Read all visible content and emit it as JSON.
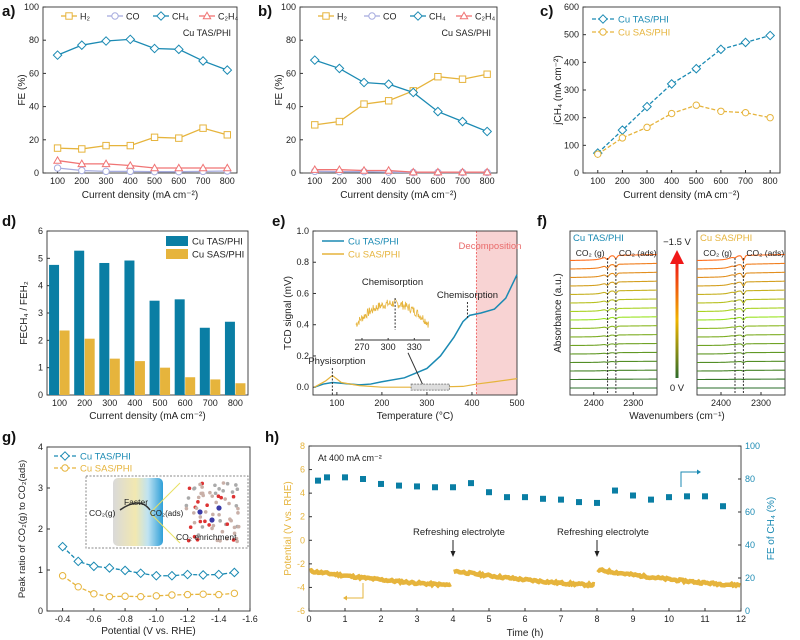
{
  "colors": {
    "blue": "#1b8ab3",
    "bar_blue": "#0a7ea4",
    "yellow": "#e6b43c",
    "lavender": "#a7acdf",
    "red": "#f07474",
    "decomp": "#f8d3d3",
    "decomp_line": "#f06d6d"
  },
  "chart_data": [
    {
      "panel": "a)",
      "type": "line",
      "x": [
        100,
        200,
        300,
        400,
        500,
        600,
        700,
        800
      ],
      "xtick_labels": [
        "100",
        "200",
        "300",
        "400",
        "500",
        "600",
        "700",
        "800"
      ],
      "ytick_labels": [
        "0",
        "20",
        "40",
        "60",
        "80",
        "100"
      ],
      "xlim": [
        40,
        840
      ],
      "ylim": [
        0,
        100
      ],
      "xlabel": "Current density (mA cm⁻²)",
      "ylabel": "FE (%)",
      "annotation": "Cu TAS/PHI",
      "series": [
        {
          "name": "H₂",
          "color": "#e6b43c",
          "marker": "square",
          "values": [
            15,
            14.5,
            16.5,
            16.5,
            21.5,
            21,
            27,
            23
          ]
        },
        {
          "name": "CO",
          "color": "#a7acdf",
          "marker": "circle",
          "values": [
            3,
            1.5,
            1,
            1,
            0.8,
            0.8,
            1,
            1.2
          ]
        },
        {
          "name": "CH₄",
          "color": "#1b8ab3",
          "marker": "diamond",
          "values": [
            71,
            77,
            79.5,
            80.5,
            75,
            74.5,
            67.5,
            62
          ]
        },
        {
          "name": "C₂H₄",
          "color": "#f07474",
          "marker": "triangle",
          "values": [
            7.5,
            5.5,
            5.5,
            4.5,
            3,
            3,
            3,
            3
          ]
        }
      ]
    },
    {
      "panel": "b)",
      "type": "line",
      "x": [
        100,
        200,
        300,
        400,
        500,
        600,
        700,
        800
      ],
      "xtick_labels": [
        "100",
        "200",
        "300",
        "400",
        "500",
        "600",
        "700",
        "800"
      ],
      "ytick_labels": [
        "0",
        "20",
        "40",
        "60",
        "80",
        "100"
      ],
      "xlim": [
        40,
        840
      ],
      "ylim": [
        0,
        100
      ],
      "xlabel": "Current density (mA cm⁻²)",
      "ylabel": "FE (%)",
      "annotation": "Cu SAS/PHI",
      "series": [
        {
          "name": "H₂",
          "color": "#e6b43c",
          "marker": "square",
          "values": [
            29,
            31,
            41.5,
            43.5,
            49.5,
            58,
            56.5,
            59.5
          ]
        },
        {
          "name": "CO",
          "color": "#a7acdf",
          "marker": "circle",
          "values": [
            1,
            0.8,
            0.8,
            0.5,
            0.3,
            0.3,
            0.3,
            0.3
          ]
        },
        {
          "name": "CH₄",
          "color": "#1b8ab3",
          "marker": "diamond",
          "values": [
            68,
            63,
            54.5,
            53.5,
            48.5,
            37,
            31,
            25
          ]
        },
        {
          "name": "C₂H₄",
          "color": "#f07474",
          "marker": "triangle",
          "values": [
            2,
            2,
            1.5,
            1.5,
            0.5,
            0.5,
            0.5,
            0.5
          ]
        }
      ]
    },
    {
      "panel": "c)",
      "type": "line",
      "x": [
        100,
        200,
        300,
        400,
        500,
        600,
        700,
        800
      ],
      "xtick_labels": [
        "100",
        "200",
        "300",
        "400",
        "500",
        "600",
        "700",
        "800"
      ],
      "ytick_labels": [
        "0",
        "100",
        "200",
        "300",
        "400",
        "500",
        "600"
      ],
      "xlim": [
        40,
        840
      ],
      "ylim": [
        0,
        600
      ],
      "xlabel": "Current density (mA cm⁻²)",
      "ylabel": "jCH₄ (mA cm⁻²)",
      "series": [
        {
          "name": "Cu TAS/PHI",
          "color": "#1b8ab3",
          "marker": "diamond",
          "values": [
            72,
            155,
            240,
            322,
            377,
            447,
            472,
            497
          ]
        },
        {
          "name": "Cu SAS/PHI",
          "color": "#e6b43c",
          "marker": "circle",
          "values": [
            68,
            127,
            165,
            215,
            245,
            223,
            218,
            200
          ]
        }
      ]
    },
    {
      "panel": "d)",
      "type": "bar",
      "categories": [
        "100",
        "200",
        "300",
        "400",
        "500",
        "600",
        "700",
        "800"
      ],
      "ytick_labels": [
        "0",
        "1",
        "2",
        "3",
        "4",
        "5",
        "6"
      ],
      "ylim": [
        0,
        6
      ],
      "xlabel": "Current density (mA cm⁻²)",
      "ylabel": "FECH₄ / FEH₂",
      "series": [
        {
          "name": "Cu TAS/PHI",
          "color": "#0a7ea4",
          "values": [
            4.76,
            5.28,
            4.83,
            4.92,
            3.45,
            3.5,
            2.46,
            2.68
          ]
        },
        {
          "name": "Cu SAS/PHI",
          "color": "#e6b43c",
          "values": [
            2.36,
            2.06,
            1.33,
            1.24,
            1.0,
            0.65,
            0.57,
            0.43
          ]
        }
      ]
    },
    {
      "panel": "e)",
      "type": "line",
      "xtick_labels": [
        "100",
        "200",
        "300",
        "400",
        "500"
      ],
      "ytick_labels": [
        "0.0",
        "0.2",
        "0.4",
        "0.6",
        "0.8",
        "1.0"
      ],
      "xlim": [
        47,
        500
      ],
      "ylim": [
        -0.05,
        1.0
      ],
      "xlabel": "Temperature (°C)",
      "ylabel": "TCD signal (mV)",
      "decomposition_start": 410,
      "annotations": {
        "physisorption": "Physisorption",
        "chemisorption": "Chemisorption",
        "inset_chemisorption": "Chemisorption",
        "decomposition": "Decomposition"
      },
      "inset": {
        "xtick_labels": [
          "270",
          "300",
          "330"
        ],
        "xlim": [
          262,
          348
        ]
      },
      "series": [
        {
          "name": "Cu TAS/PHI",
          "color": "#1b8ab3",
          "x": [
            50,
            70,
            90,
            110,
            150,
            175,
            200,
            250,
            300,
            330,
            360,
            380,
            395,
            420,
            450,
            475,
            500
          ],
          "values": [
            0.0,
            0.02,
            0.03,
            0.025,
            0.015,
            0.02,
            0.035,
            0.06,
            0.12,
            0.2,
            0.32,
            0.42,
            0.46,
            0.475,
            0.5,
            0.57,
            0.72
          ]
        },
        {
          "name": "Cu SAS/PHI",
          "color": "#e6b43c",
          "x": [
            50,
            75,
            90,
            110,
            150,
            200,
            300,
            380,
            410,
            450,
            500
          ],
          "values": [
            0.0,
            0.04,
            0.075,
            0.03,
            0.01,
            0.0,
            0.0,
            0.005,
            0.02,
            0.035,
            0.055
          ]
        }
      ]
    },
    {
      "panel": "f)",
      "type": "line",
      "xtick_labels": [
        "2400",
        "2300"
      ],
      "xlim": [
        2460,
        2240
      ],
      "xlabel": "Wavenumbers (cm⁻¹)",
      "ylabel": "Absorbance (a.u.)",
      "n_spectra": 16,
      "potential_top": "−1.5 V",
      "potential_bottom": "0 V",
      "peak_gas_label": "CO₂ (g)",
      "peak_ads_label": "CO₂ (ads)",
      "peak_gas": 2365,
      "peak_ads": 2344,
      "series": [
        {
          "name": "Cu TAS/PHI",
          "color": "#1b8ab3",
          "gas_depth": 0.6,
          "ads_depth": 0.6
        },
        {
          "name": "Cu SAS/PHI",
          "color": "#e6b43c",
          "gas_depth": 0.25,
          "ads_depth": 1.0
        }
      ]
    },
    {
      "panel": "g)",
      "type": "line",
      "x": [
        -0.4,
        -0.5,
        -0.6,
        -0.7,
        -0.8,
        -0.9,
        -1.0,
        -1.1,
        -1.2,
        -1.3,
        -1.4,
        -1.5
      ],
      "xtick_labels": [
        "-0.4",
        "-0.6",
        "-0.8",
        "-1.0",
        "-1.2",
        "-1.4",
        "-1.6"
      ],
      "ytick_labels": [
        "0",
        "1",
        "2",
        "3",
        "4"
      ],
      "xlim": [
        -0.3,
        -1.6
      ],
      "ylim": [
        0,
        4
      ],
      "xlabel": "Potential (V vs. RHE)",
      "ylabel": "Peak ratio of CO₂(g) to CO₂(ads)",
      "inset": {
        "faster": "Faster",
        "gas": "CO₂(g)",
        "ads": "CO₂(ads)",
        "enrichment": "CO₂ enrichment"
      },
      "series": [
        {
          "name": "Cu TAS/PHI",
          "color": "#1b8ab3",
          "marker": "diamond",
          "values": [
            1.57,
            1.21,
            1.09,
            1.05,
            0.99,
            0.92,
            0.86,
            0.86,
            0.89,
            0.88,
            0.89,
            0.94
          ]
        },
        {
          "name": "Cu SAS/PHI",
          "color": "#e6b43c",
          "marker": "circle",
          "values": [
            0.86,
            0.59,
            0.42,
            0.35,
            0.36,
            0.35,
            0.37,
            0.39,
            0.4,
            0.41,
            0.4,
            0.43
          ]
        }
      ]
    },
    {
      "panel": "h)",
      "type": "scatter",
      "xtick_labels": [
        "0",
        "1",
        "2",
        "3",
        "4",
        "5",
        "6",
        "7",
        "8",
        "9",
        "10",
        "11",
        "12"
      ],
      "ytick_labels": [
        "-6",
        "-4",
        "-2",
        "0",
        "2",
        "4",
        "6",
        "8"
      ],
      "y2tick_labels": [
        "0",
        "20",
        "40",
        "60",
        "80",
        "100"
      ],
      "xlim": [
        0,
        12
      ],
      "ylim": [
        -6,
        8
      ],
      "y2lim": [
        0,
        100
      ],
      "xlabel": "Time (h)",
      "ylabel": "Potential (V vs. RHE)",
      "y2label": "FE of CH₄ (%)",
      "annotation": "At 400 mA cm⁻²",
      "refresh_label": "Refreshing electrolyte",
      "refresh_times": [
        4,
        8
      ],
      "potential_segments": [
        {
          "t_start": 0,
          "t_end": 4,
          "v_start": -2.6,
          "v_end": -3.8
        },
        {
          "t_start": 4,
          "t_end": 8,
          "v_start": -2.6,
          "v_end": -3.8
        },
        {
          "t_start": 8,
          "t_end": 12,
          "v_start": -2.5,
          "v_end": -3.8
        }
      ],
      "fe_series": {
        "name": "FE of CH₄",
        "color": "#0a7ea4",
        "time": [
          0.25,
          0.5,
          1,
          1.5,
          2,
          2.5,
          3,
          3.5,
          4,
          4.5,
          5,
          5.5,
          6,
          6.5,
          7,
          7.5,
          8,
          8.5,
          9,
          9.5,
          10,
          10.5,
          11,
          11.5
        ],
        "values": [
          79,
          81,
          81,
          80,
          77,
          76,
          75.5,
          75,
          75,
          77.5,
          72,
          69,
          69,
          68,
          67.5,
          66,
          65.5,
          73,
          70,
          67.5,
          69,
          69.5,
          69.5,
          63.5
        ]
      }
    }
  ]
}
